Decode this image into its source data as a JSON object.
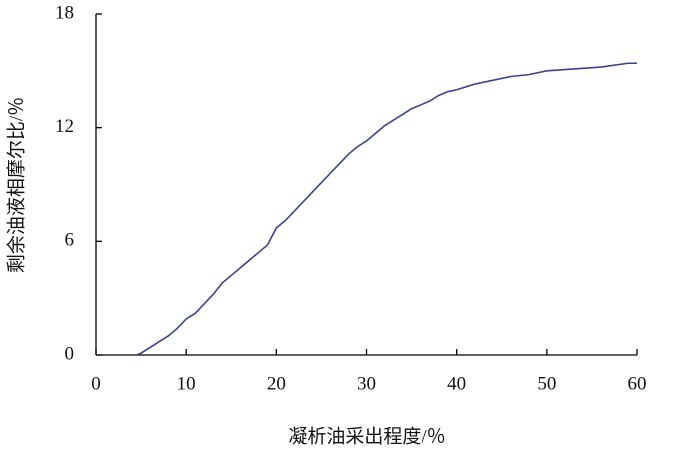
{
  "chart_data": {
    "type": "line",
    "x_label": "凝析油采出程度/％",
    "y_label": "剩余油液相摩尔比/％",
    "xlim": [
      0,
      60
    ],
    "xticks": [
      0,
      10,
      20,
      30,
      40,
      50,
      60
    ],
    "ylim": [
      0,
      18
    ],
    "yticks": [
      0,
      6,
      12,
      18
    ],
    "x": [
      4.5,
      5,
      6,
      7,
      8,
      9,
      10,
      11,
      12,
      13,
      14,
      15,
      16,
      17,
      18,
      19,
      20,
      21,
      22,
      23,
      24,
      25,
      26,
      27,
      28,
      29,
      30,
      31,
      32,
      33,
      34,
      35,
      36,
      37,
      38,
      39,
      40,
      42,
      44,
      46,
      48,
      50,
      53,
      56,
      59,
      60
    ],
    "series": [
      {
        "color": "#3c4192",
        "values": [
          0,
          0.1,
          0.4,
          0.7,
          1.0,
          1.4,
          1.9,
          2.2,
          2.7,
          3.2,
          3.8,
          4.2,
          4.6,
          5.0,
          5.4,
          5.8,
          6.7,
          7.1,
          7.6,
          8.1,
          8.6,
          9.1,
          9.6,
          10.1,
          10.6,
          11.0,
          11.3,
          11.7,
          12.1,
          12.4,
          12.7,
          13.0,
          13.2,
          13.4,
          13.7,
          13.9,
          14.0,
          14.3,
          14.5,
          14.7,
          14.8,
          15.0,
          15.1,
          15.2,
          15.4,
          15.4
        ]
      }
    ]
  }
}
